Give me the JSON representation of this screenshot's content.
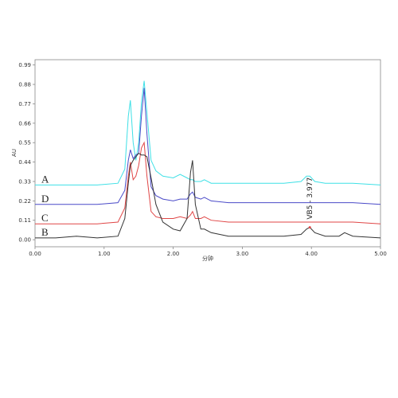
{
  "chart_data": {
    "type": "line",
    "y_label": "AU",
    "x_label": "分钟",
    "x": [
      0,
      0.3,
      0.6,
      0.9,
      1.2,
      1.3,
      1.35,
      1.38,
      1.42,
      1.46,
      1.5,
      1.54,
      1.58,
      1.62,
      1.68,
      1.75,
      1.85,
      2.0,
      2.1,
      2.2,
      2.25,
      2.28,
      2.32,
      2.4,
      2.45,
      2.55,
      2.8,
      3.2,
      3.6,
      3.85,
      3.93,
      3.977,
      4.05,
      4.2,
      4.4,
      4.48,
      4.6,
      5.0
    ],
    "series": [
      {
        "name": "A",
        "color": "#3ee0e6",
        "values": [
          0.31,
          0.31,
          0.31,
          0.31,
          0.32,
          0.4,
          0.7,
          0.79,
          0.55,
          0.45,
          0.55,
          0.78,
          0.9,
          0.72,
          0.45,
          0.39,
          0.36,
          0.35,
          0.37,
          0.35,
          0.34,
          0.34,
          0.33,
          0.33,
          0.34,
          0.32,
          0.32,
          0.32,
          0.32,
          0.33,
          0.36,
          0.36,
          0.33,
          0.32,
          0.32,
          0.32,
          0.32,
          0.31
        ]
      },
      {
        "name": "D",
        "color": "#4a4ac8",
        "values": [
          0.2,
          0.2,
          0.2,
          0.2,
          0.21,
          0.28,
          0.45,
          0.51,
          0.46,
          0.48,
          0.49,
          0.7,
          0.86,
          0.6,
          0.3,
          0.25,
          0.23,
          0.22,
          0.23,
          0.23,
          0.26,
          0.27,
          0.24,
          0.23,
          0.24,
          0.22,
          0.21,
          0.21,
          0.21,
          0.21,
          0.21,
          0.21,
          0.21,
          0.21,
          0.21,
          0.21,
          0.21,
          0.2
        ]
      },
      {
        "name": "C",
        "color": "#e04646",
        "values": [
          0.09,
          0.09,
          0.09,
          0.09,
          0.1,
          0.18,
          0.36,
          0.44,
          0.34,
          0.36,
          0.42,
          0.52,
          0.55,
          0.36,
          0.16,
          0.13,
          0.12,
          0.12,
          0.13,
          0.12,
          0.14,
          0.16,
          0.12,
          0.12,
          0.13,
          0.11,
          0.1,
          0.1,
          0.1,
          0.1,
          0.1,
          0.1,
          0.1,
          0.1,
          0.1,
          0.1,
          0.1,
          0.09
        ]
      },
      {
        "name": "B",
        "color": "#333333",
        "values": [
          0.01,
          0.01,
          0.02,
          0.01,
          0.02,
          0.12,
          0.32,
          0.42,
          0.45,
          0.47,
          0.49,
          0.48,
          0.48,
          0.47,
          0.35,
          0.2,
          0.1,
          0.06,
          0.05,
          0.12,
          0.38,
          0.45,
          0.2,
          0.06,
          0.06,
          0.04,
          0.02,
          0.02,
          0.02,
          0.03,
          0.06,
          0.07,
          0.04,
          0.02,
          0.02,
          0.04,
          0.02,
          0.01
        ]
      }
    ],
    "annotation": {
      "text": "VB5 - 3.977",
      "x": 3.977,
      "y": 0.07,
      "color": "#e04646"
    },
    "xlim": [
      0,
      5
    ],
    "ylim": [
      -0.04,
      1.02
    ],
    "xticks": [
      {
        "value": 0,
        "label": "0.00"
      },
      {
        "value": 1,
        "label": "1.00"
      },
      {
        "value": 2,
        "label": "2.00"
      },
      {
        "value": 3,
        "label": "3.00"
      },
      {
        "value": 4,
        "label": "4.00"
      },
      {
        "value": 5,
        "label": "5.00"
      }
    ],
    "yticks": [
      {
        "value": 0,
        "label": "0.00"
      },
      0.11,
      0.22,
      0.33,
      0.44,
      0.55,
      0.66,
      0.77,
      0.88,
      0.99
    ]
  }
}
